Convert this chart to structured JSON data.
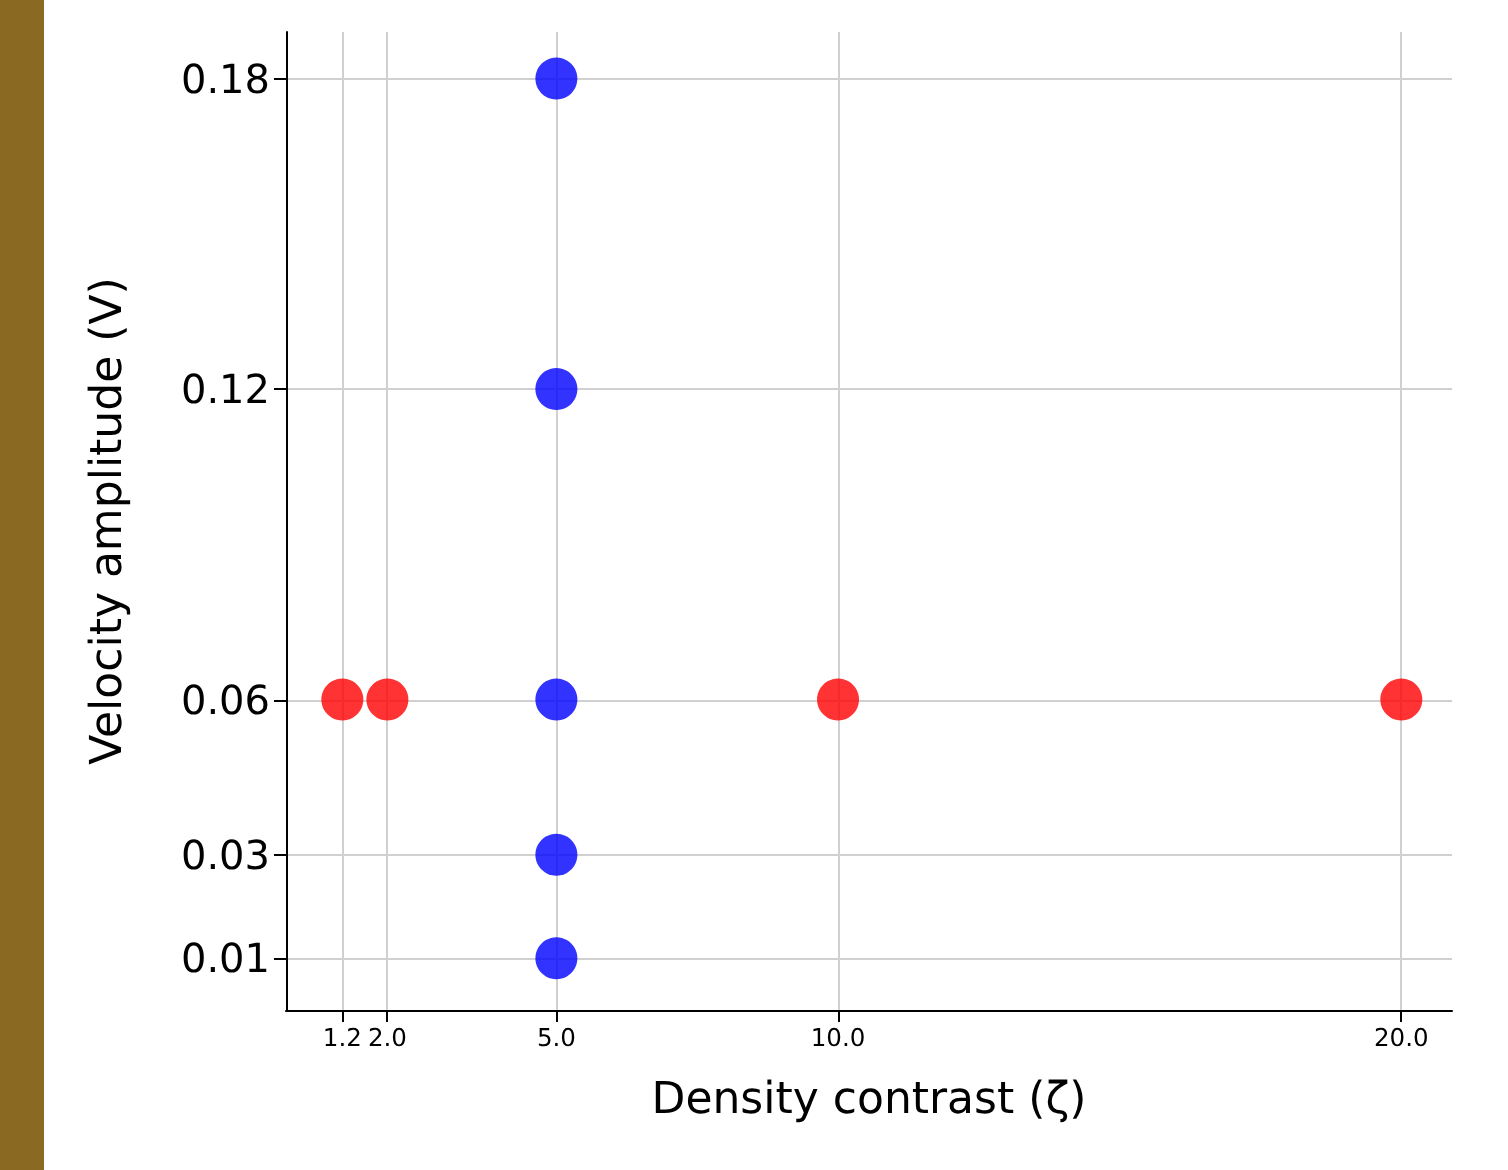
{
  "chart_data": {
    "type": "scatter",
    "xlabel": "Density contrast (ζ)",
    "ylabel": "Velocity amplitude (V)",
    "xlim": [
      0.2,
      20.9
    ],
    "xticks": [
      {
        "value": 1.2,
        "label": "1.2"
      },
      {
        "value": 2,
        "label": "2.0"
      },
      {
        "value": 5,
        "label": "5.0"
      },
      {
        "value": 10,
        "label": "10.0"
      },
      {
        "value": 20,
        "label": "20.0"
      }
    ],
    "ylim": [
      0,
      0.189
    ],
    "yticks": [
      0.01,
      0.03,
      0.06,
      0.12,
      0.18
    ],
    "grid": true,
    "marker": "circle",
    "series": [
      {
        "color": "#ff0000",
        "x": [
          1.2,
          2,
          10,
          20
        ],
        "values": [
          0.06,
          0.06,
          0.06,
          0.06
        ]
      },
      {
        "color": "#0000ff",
        "x": [
          5,
          5,
          5,
          5,
          5
        ],
        "values": [
          0.01,
          0.03,
          0.06,
          0.12,
          0.18
        ]
      }
    ]
  }
}
